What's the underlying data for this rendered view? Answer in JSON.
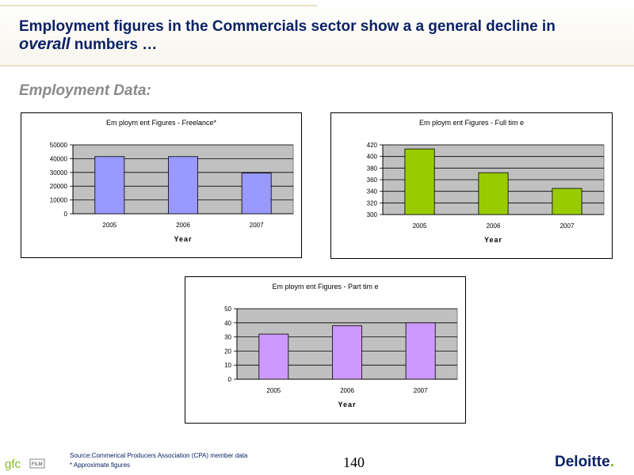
{
  "header": {
    "title_part1": "Employment figures in the Commercials sector show a a general decline in",
    "title_italic": "overall",
    "title_part2": " numbers …"
  },
  "section_heading": "Employment Data:",
  "chart_data": [
    {
      "type": "bar",
      "title": "Em ploym ent Figures - Freelance*",
      "xlabel": "Year",
      "ylabel": "",
      "categories": [
        "2005",
        "2006",
        "2007"
      ],
      "values": [
        41500,
        41500,
        29500
      ],
      "ylim": [
        0,
        50000
      ],
      "yticks": [
        0,
        10000,
        20000,
        30000,
        40000,
        50000
      ],
      "bar_color": "#9999ff",
      "plot_bg": "#c0c0c0",
      "grid": true,
      "legend": "none"
    },
    {
      "type": "bar",
      "title": "Em ploym ent Figures - Full tim e",
      "xlabel": "Year",
      "ylabel": "",
      "categories": [
        "2005",
        "2006",
        "2007"
      ],
      "values": [
        413,
        372,
        345
      ],
      "ylim": [
        300,
        420
      ],
      "yticks": [
        300,
        320,
        340,
        360,
        380,
        400,
        420
      ],
      "bar_color": "#99cc00",
      "plot_bg": "#c0c0c0",
      "grid": true,
      "legend": "none"
    },
    {
      "type": "bar",
      "title": "Em ploym ent Figures - Part tim e",
      "xlabel": "Year",
      "ylabel": "",
      "categories": [
        "2005",
        "2006",
        "2007"
      ],
      "values": [
        32,
        38,
        40
      ],
      "ylim": [
        0,
        50
      ],
      "yticks": [
        0,
        10,
        20,
        30,
        40,
        50
      ],
      "bar_color": "#cc99ff",
      "plot_bg": "#c0c0c0",
      "grid": true,
      "legend": "none"
    }
  ],
  "footer": {
    "source": "Source:Commerical Producers Association (CPA) member data",
    "note": "* Approximate figures",
    "page_number": "140",
    "logo_text": "Deloitte",
    "logo_dot": ".",
    "gfc_text": "gfc",
    "gfc_small": "FILM"
  }
}
